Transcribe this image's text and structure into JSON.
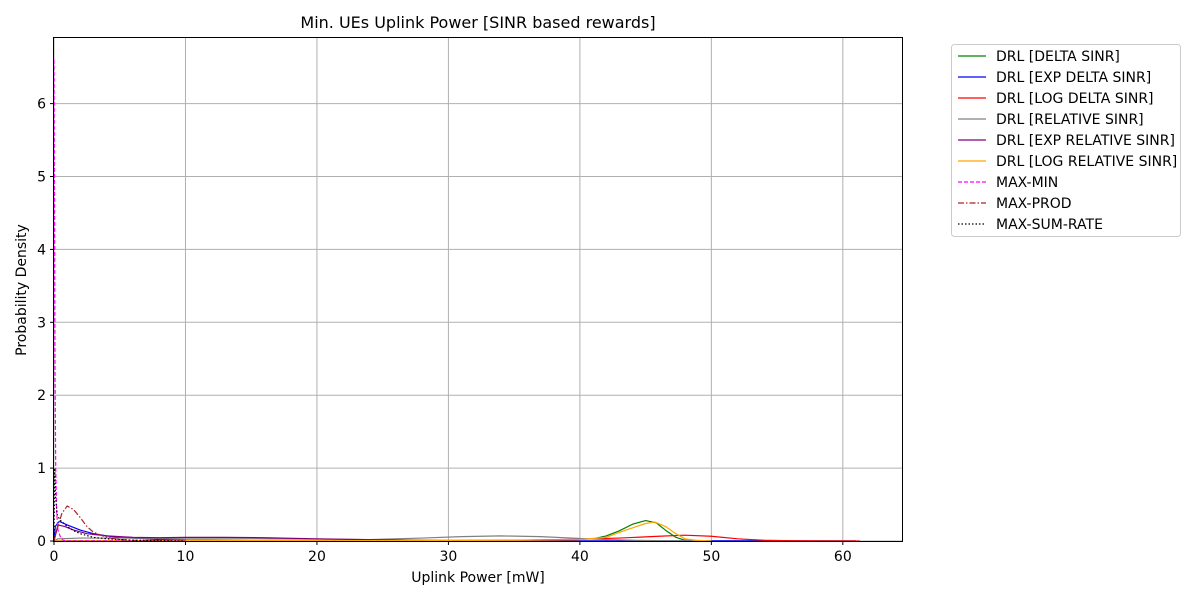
{
  "chart_data": {
    "type": "line",
    "title": "Min. UEs Uplink Power [SINR based rewards]",
    "xlabel": "Uplink Power [mW]",
    "ylabel": "Probability Density",
    "xlim": [
      0,
      64.5
    ],
    "ylim": [
      0,
      6.9
    ],
    "xticks": [
      0,
      10,
      20,
      30,
      40,
      50,
      60
    ],
    "yticks": [
      0,
      1,
      2,
      3,
      4,
      5,
      6
    ],
    "grid": true,
    "legend_position": "outside-upper-right",
    "series": [
      {
        "name": "DRL [DELTA SINR]",
        "color": "#008000",
        "dash": "solid",
        "points": [
          [
            0,
            0.0
          ],
          [
            2,
            0.005
          ],
          [
            4,
            0.005
          ],
          [
            6,
            0.005
          ],
          [
            10,
            0.005
          ],
          [
            20,
            0.004
          ],
          [
            30,
            0.004
          ],
          [
            38,
            0.006
          ],
          [
            41,
            0.03
          ],
          [
            42,
            0.07
          ],
          [
            43,
            0.14
          ],
          [
            44,
            0.23
          ],
          [
            45,
            0.28
          ],
          [
            45.8,
            0.25
          ],
          [
            46.5,
            0.15
          ],
          [
            47.3,
            0.05
          ],
          [
            48,
            0.01
          ],
          [
            49,
            0.0
          ],
          [
            61,
            0.0
          ]
        ]
      },
      {
        "name": "DRL [EXP DELTA SINR]",
        "color": "#0000ff",
        "dash": "solid",
        "points": [
          [
            0,
            0.0
          ],
          [
            0.1,
            0.2
          ],
          [
            0.4,
            0.27
          ],
          [
            1,
            0.22
          ],
          [
            2,
            0.15
          ],
          [
            3,
            0.1
          ],
          [
            4,
            0.07
          ],
          [
            5,
            0.05
          ],
          [
            6,
            0.04
          ],
          [
            8,
            0.02
          ],
          [
            10,
            0.01
          ],
          [
            15,
            0.005
          ],
          [
            20,
            0.003
          ],
          [
            25,
            0.002
          ],
          [
            30,
            0.002
          ],
          [
            40,
            0.002
          ],
          [
            50,
            0.002
          ],
          [
            61,
            0.001
          ]
        ]
      },
      {
        "name": "DRL [LOG DELTA SINR]",
        "color": "#ff0000",
        "dash": "solid",
        "points": [
          [
            0,
            0.0
          ],
          [
            5,
            0.005
          ],
          [
            15,
            0.005
          ],
          [
            25,
            0.005
          ],
          [
            35,
            0.01
          ],
          [
            40,
            0.025
          ],
          [
            43,
            0.04
          ],
          [
            46,
            0.065
          ],
          [
            48,
            0.08
          ],
          [
            50,
            0.065
          ],
          [
            52,
            0.03
          ],
          [
            54,
            0.01
          ],
          [
            56,
            0.004
          ],
          [
            58,
            0.002
          ],
          [
            61.3,
            0.0
          ]
        ]
      },
      {
        "name": "DRL [RELATIVE SINR]",
        "color": "#808080",
        "dash": "solid",
        "points": [
          [
            0,
            0.0
          ],
          [
            0.3,
            0.03
          ],
          [
            2,
            0.04
          ],
          [
            5,
            0.04
          ],
          [
            10,
            0.03
          ],
          [
            15,
            0.03
          ],
          [
            20,
            0.025
          ],
          [
            24,
            0.02
          ],
          [
            28,
            0.04
          ],
          [
            31,
            0.06
          ],
          [
            34,
            0.07
          ],
          [
            37,
            0.06
          ],
          [
            40,
            0.035
          ],
          [
            42,
            0.02
          ],
          [
            44,
            0.01
          ],
          [
            46,
            0.005
          ],
          [
            50,
            0.0
          ]
        ]
      },
      {
        "name": "DRL [EXP RELATIVE SINR]",
        "color": "#800080",
        "dash": "solid",
        "points": [
          [
            0,
            0.0
          ],
          [
            0.3,
            0.22
          ],
          [
            0.8,
            0.2
          ],
          [
            1.5,
            0.15
          ],
          [
            2.5,
            0.1
          ],
          [
            4,
            0.07
          ],
          [
            6,
            0.05
          ],
          [
            8,
            0.045
          ],
          [
            10,
            0.05
          ],
          [
            13,
            0.05
          ],
          [
            16,
            0.045
          ],
          [
            20,
            0.03
          ],
          [
            25,
            0.015
          ],
          [
            30,
            0.005
          ],
          [
            35,
            0.002
          ],
          [
            40,
            0.0
          ]
        ]
      },
      {
        "name": "DRL [LOG RELATIVE SINR]",
        "color": "#ffa500",
        "dash": "solid",
        "points": [
          [
            0,
            0.0
          ],
          [
            5,
            0.005
          ],
          [
            15,
            0.005
          ],
          [
            25,
            0.005
          ],
          [
            35,
            0.01
          ],
          [
            40,
            0.02
          ],
          [
            42,
            0.05
          ],
          [
            43.5,
            0.15
          ],
          [
            45,
            0.24
          ],
          [
            45.7,
            0.26
          ],
          [
            46.5,
            0.2
          ],
          [
            47.3,
            0.1
          ],
          [
            48,
            0.03
          ],
          [
            48.8,
            0.01
          ],
          [
            50,
            0.0
          ]
        ]
      },
      {
        "name": "MAX-MIN",
        "color": "#ff00ff",
        "dash": "dashed",
        "points": [
          [
            0,
            6.6
          ],
          [
            0.04,
            4.5
          ],
          [
            0.08,
            2.3
          ],
          [
            0.13,
            1.0
          ],
          [
            0.2,
            0.4
          ],
          [
            0.3,
            0.15
          ],
          [
            0.5,
            0.05
          ],
          [
            0.7,
            0.01
          ],
          [
            1,
            0.0
          ],
          [
            3,
            0.0
          ],
          [
            10,
            0.0
          ]
        ]
      },
      {
        "name": "MAX-PROD",
        "color": "#b22222",
        "dash": "dashdot",
        "points": [
          [
            0,
            0.0
          ],
          [
            0.3,
            0.2
          ],
          [
            0.6,
            0.38
          ],
          [
            1,
            0.48
          ],
          [
            1.5,
            0.43
          ],
          [
            2,
            0.32
          ],
          [
            2.5,
            0.2
          ],
          [
            3,
            0.12
          ],
          [
            4,
            0.05
          ],
          [
            5,
            0.02
          ],
          [
            6,
            0.01
          ],
          [
            8,
            0.0
          ],
          [
            10,
            0.0
          ]
        ]
      },
      {
        "name": "MAX-SUM-RATE",
        "color": "#000000",
        "dash": "dotted",
        "points": [
          [
            0,
            0.0
          ],
          [
            0.05,
            1.0
          ],
          [
            0.12,
            0.6
          ],
          [
            0.25,
            0.35
          ],
          [
            0.5,
            0.28
          ],
          [
            1,
            0.2
          ],
          [
            1.5,
            0.14
          ],
          [
            2,
            0.1
          ],
          [
            3,
            0.05
          ],
          [
            4,
            0.03
          ],
          [
            6,
            0.01
          ],
          [
            8,
            0.005
          ],
          [
            10,
            0.0
          ]
        ]
      }
    ]
  }
}
